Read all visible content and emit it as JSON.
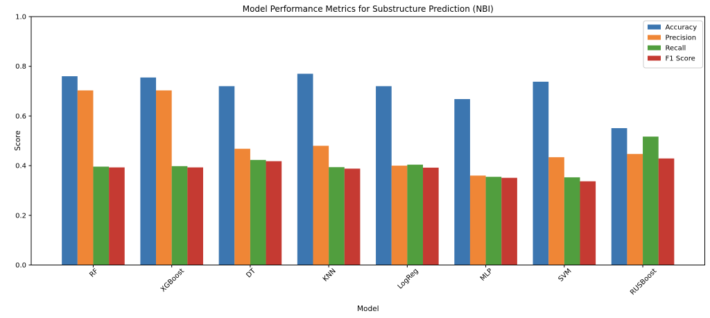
{
  "chart_data": {
    "type": "bar",
    "title": "Model Performance Metrics for Substructure Prediction (NBI)",
    "xlabel": "Model",
    "ylabel": "Score",
    "categories": [
      "RF",
      "XGBoost",
      "DT",
      "KNN",
      "LogReg",
      "MLP",
      "SVM",
      "RUSBoost"
    ],
    "series": [
      {
        "name": "Accuracy",
        "color": "#3c76b0",
        "values": [
          0.76,
          0.755,
          0.72,
          0.77,
          0.72,
          0.668,
          0.738,
          0.551
        ]
      },
      {
        "name": "Precision",
        "color": "#ef8636",
        "values": [
          0.703,
          0.703,
          0.468,
          0.48,
          0.4,
          0.36,
          0.434,
          0.447
        ]
      },
      {
        "name": "Recall",
        "color": "#519e3e",
        "values": [
          0.396,
          0.398,
          0.423,
          0.394,
          0.404,
          0.355,
          0.353,
          0.517
        ]
      },
      {
        "name": "F1 Score",
        "color": "#c53a32",
        "values": [
          0.393,
          0.393,
          0.418,
          0.388,
          0.392,
          0.351,
          0.337,
          0.429
        ]
      }
    ],
    "ylim": [
      0.0,
      1.0
    ],
    "yticks": [
      "0.0",
      "0.2",
      "0.4",
      "0.6",
      "0.8",
      "1.0"
    ],
    "grid": false,
    "legend_position": "upper right",
    "colors": {
      "background": "#ffffff",
      "spine": "#000000",
      "legend_border": "#cccccc"
    }
  }
}
